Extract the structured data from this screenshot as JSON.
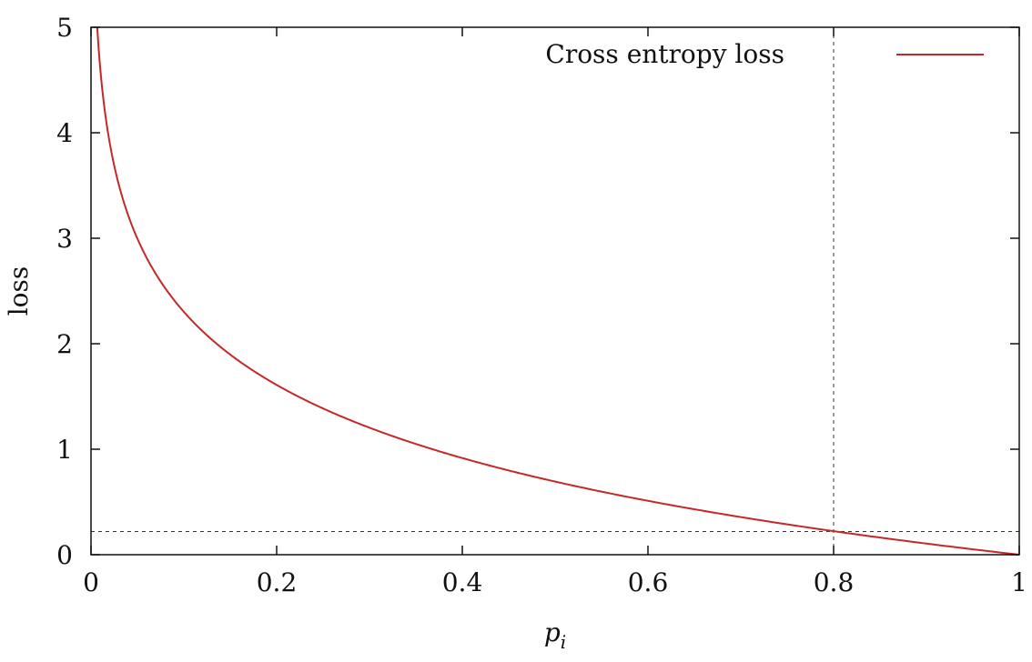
{
  "chart_data": {
    "type": "line",
    "title": "",
    "xlabel": "p",
    "xlabel_subscript": "i",
    "ylabel": "loss",
    "xlim": [
      0,
      1
    ],
    "ylim": [
      0,
      5
    ],
    "x_ticks": [
      0,
      0.2,
      0.4,
      0.6,
      0.8,
      1
    ],
    "x_tick_labels": [
      "0",
      "0.2",
      "0.4",
      "0.6",
      "0.8",
      "1"
    ],
    "y_ticks": [
      0,
      1,
      2,
      3,
      4,
      5
    ],
    "y_tick_labels": [
      "0",
      "1",
      "2",
      "3",
      "4",
      "5"
    ],
    "grid": false,
    "legend": {
      "placement": "top-right",
      "entries": [
        "Cross entropy loss"
      ]
    },
    "series": [
      {
        "name": "Cross entropy loss",
        "color": "#c62828",
        "function": "-ln(x)",
        "x": [
          0.0067,
          0.01,
          0.02,
          0.03,
          0.05,
          0.07,
          0.1,
          0.15,
          0.2,
          0.25,
          0.3,
          0.35,
          0.4,
          0.45,
          0.5,
          0.55,
          0.6,
          0.65,
          0.7,
          0.75,
          0.8,
          0.85,
          0.9,
          0.95,
          1.0
        ],
        "y": [
          5.0,
          4.61,
          3.91,
          3.51,
          3.0,
          2.66,
          2.3,
          1.9,
          1.61,
          1.39,
          1.2,
          1.05,
          0.92,
          0.8,
          0.69,
          0.6,
          0.51,
          0.43,
          0.36,
          0.29,
          0.22,
          0.16,
          0.11,
          0.05,
          0.0
        ]
      }
    ],
    "reference_lines": [
      {
        "orientation": "vertical",
        "value": 0.8,
        "style": "dashed"
      },
      {
        "orientation": "horizontal",
        "value": 0.22,
        "style": "dashed"
      }
    ]
  }
}
